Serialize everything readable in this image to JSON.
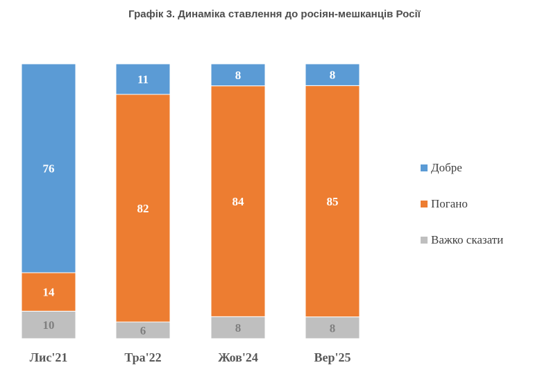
{
  "chart_data": {
    "type": "bar",
    "stacked": true,
    "title": "Графік 3. Динаміка ставлення до росіян-мешканців Росії",
    "categories": [
      "Лис'21",
      "Тра'22",
      "Жов'24",
      "Вер'25"
    ],
    "series": [
      {
        "name": "Добре",
        "values": [
          76,
          11,
          8,
          8
        ],
        "color": "#5b9bd5",
        "label_color": "#ffffff"
      },
      {
        "name": "Погано",
        "values": [
          14,
          82,
          84,
          85
        ],
        "color": "#ed7d31",
        "label_color": "#ffffff"
      },
      {
        "name": "Важко сказати",
        "values": [
          10,
          6,
          8,
          8
        ],
        "color": "#bfbfbf",
        "label_color": "#7f7f7f"
      }
    ],
    "stack_order_bottom_to_top": [
      "Важко сказати",
      "Погано",
      "Добре"
    ],
    "legend_position": "right",
    "grid": false
  }
}
